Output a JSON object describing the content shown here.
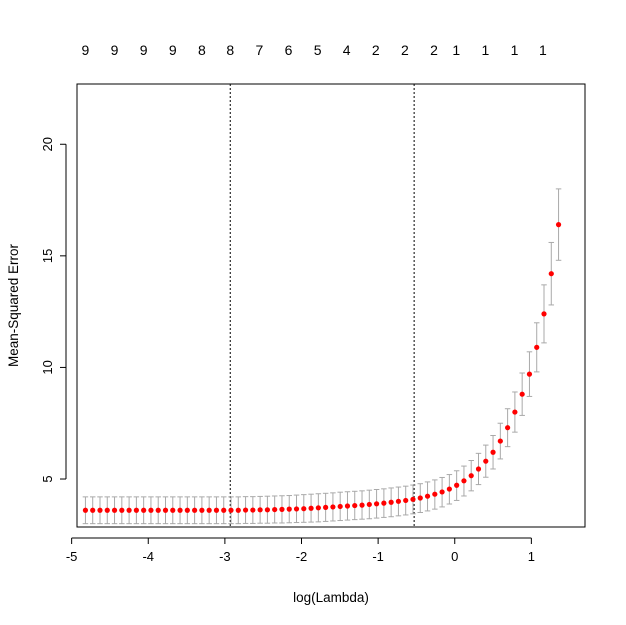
{
  "chart_data": {
    "type": "scatter",
    "title": "",
    "xlabel": "log(Lambda)",
    "ylabel": "Mean-Squared Error",
    "xlim": [
      -4.93,
      1.7
    ],
    "ylim": [
      2.85,
      22.7
    ],
    "x_ticks": [
      -5,
      -4,
      -3,
      -2,
      -1,
      0,
      1
    ],
    "x_tick_labels": [
      "-5",
      "-4",
      "-3",
      "-2",
      "-1",
      "0",
      "1"
    ],
    "y_ticks": [
      5,
      10,
      15,
      20
    ],
    "y_tick_labels": [
      "5",
      "10",
      "15",
      "20"
    ],
    "top_axis": {
      "positions": [
        -4.82,
        -4.44,
        -4.06,
        -3.68,
        -3.3,
        -2.93,
        -2.55,
        -2.17,
        -1.79,
        -1.41,
        -1.03,
        -0.65,
        -0.27,
        0.02,
        0.4,
        0.78,
        1.15
      ],
      "labels": [
        "9",
        "9",
        "9",
        "9",
        "8",
        "8",
        "7",
        "6",
        "5",
        "4",
        "2",
        "2",
        "2",
        "1",
        "1",
        "1",
        "1"
      ]
    },
    "vlines": [
      -2.93,
      -0.53
    ],
    "grid": false,
    "legend": "none",
    "point_color": "#ff0000",
    "errorbar_color": "#a9a9a9",
    "x": [
      -4.82,
      -4.725,
      -4.63,
      -4.535,
      -4.44,
      -4.345,
      -4.25,
      -4.155,
      -4.06,
      -3.965,
      -3.87,
      -3.775,
      -3.68,
      -3.585,
      -3.49,
      -3.395,
      -3.3,
      -3.205,
      -3.11,
      -3.015,
      -2.92,
      -2.825,
      -2.73,
      -2.635,
      -2.54,
      -2.445,
      -2.35,
      -2.255,
      -2.16,
      -2.065,
      -1.97,
      -1.875,
      -1.78,
      -1.685,
      -1.59,
      -1.495,
      -1.4,
      -1.305,
      -1.21,
      -1.115,
      -1.02,
      -0.925,
      -0.83,
      -0.735,
      -0.64,
      -0.545,
      -0.45,
      -0.355,
      -0.26,
      -0.165,
      -0.07,
      0.025,
      0.12,
      0.215,
      0.31,
      0.405,
      0.5,
      0.595,
      0.69,
      0.785,
      0.88,
      0.975,
      1.07,
      1.165,
      1.26,
      1.355
    ],
    "y": [
      3.6,
      3.6,
      3.6,
      3.6,
      3.6,
      3.6,
      3.6,
      3.6,
      3.6,
      3.6,
      3.6,
      3.6,
      3.6,
      3.6,
      3.6,
      3.6,
      3.6,
      3.6,
      3.6,
      3.6,
      3.6,
      3.6,
      3.61,
      3.61,
      3.62,
      3.62,
      3.63,
      3.64,
      3.65,
      3.66,
      3.67,
      3.69,
      3.71,
      3.73,
      3.75,
      3.77,
      3.79,
      3.81,
      3.83,
      3.86,
      3.89,
      3.92,
      3.96,
      4.0,
      4.04,
      4.09,
      4.15,
      4.23,
      4.32,
      4.42,
      4.55,
      4.72,
      4.92,
      5.15,
      5.45,
      5.8,
      6.2,
      6.7,
      7.3,
      8.0,
      8.8,
      9.7,
      10.9,
      12.4,
      14.2,
      16.4
    ],
    "y_upper": [
      4.2,
      4.2,
      4.2,
      4.2,
      4.2,
      4.2,
      4.2,
      4.2,
      4.2,
      4.2,
      4.2,
      4.2,
      4.2,
      4.2,
      4.2,
      4.2,
      4.2,
      4.2,
      4.2,
      4.2,
      4.2,
      4.2,
      4.21,
      4.21,
      4.22,
      4.23,
      4.24,
      4.25,
      4.26,
      4.28,
      4.3,
      4.32,
      4.34,
      4.36,
      4.38,
      4.41,
      4.43,
      4.45,
      4.47,
      4.5,
      4.53,
      4.56,
      4.6,
      4.64,
      4.68,
      4.73,
      4.79,
      4.87,
      4.96,
      5.07,
      5.2,
      5.37,
      5.58,
      5.83,
      6.15,
      6.52,
      6.95,
      7.5,
      8.15,
      8.9,
      9.75,
      10.7,
      12.0,
      13.7,
      15.6,
      18.0
    ],
    "y_lower": [
      3.0,
      3.0,
      3.0,
      3.0,
      3.0,
      3.0,
      3.0,
      3.0,
      3.0,
      3.0,
      3.0,
      3.0,
      3.0,
      3.0,
      3.0,
      3.0,
      3.0,
      3.0,
      3.0,
      3.0,
      3.0,
      3.0,
      3.01,
      3.01,
      3.02,
      3.02,
      3.03,
      3.03,
      3.04,
      3.05,
      3.06,
      3.07,
      3.08,
      3.1,
      3.12,
      3.14,
      3.16,
      3.18,
      3.2,
      3.22,
      3.25,
      3.28,
      3.31,
      3.35,
      3.39,
      3.44,
      3.5,
      3.57,
      3.65,
      3.75,
      3.88,
      4.04,
      4.24,
      4.47,
      4.75,
      5.08,
      5.45,
      5.9,
      6.45,
      7.1,
      7.85,
      8.7,
      9.8,
      11.1,
      12.8,
      14.8
    ]
  }
}
